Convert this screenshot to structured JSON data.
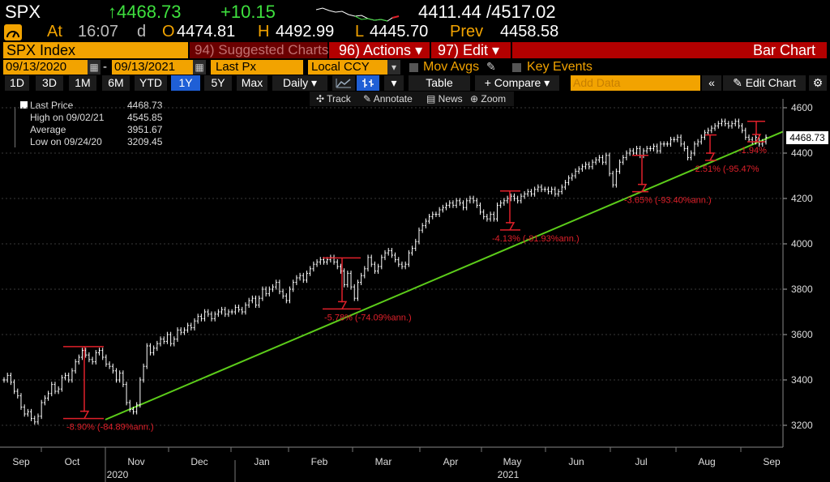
{
  "quote": {
    "symbol": "SPX",
    "last": "↑4468.73",
    "change": "+10.15",
    "range": "4411.44 /4517.02",
    "at_label": "At",
    "time": "16:07",
    "d": "d",
    "open_label": "O",
    "open": "4474.81",
    "high_label": "H",
    "high": "4492.99",
    "low_label": "L",
    "low": "4445.70",
    "prev_label": "Prev",
    "prev": "4458.58"
  },
  "toolbar1": {
    "security": "SPX Index",
    "suggested": "94) Suggested Charts",
    "actions": "96) Actions",
    "edit": "97) Edit",
    "bar_chart": "Bar Chart"
  },
  "toolbar2": {
    "start_date": "09/13/2020",
    "end_date": "09/13/2021",
    "field": "Last Px",
    "currency": "Local CCY",
    "mov_avgs": "Mov Avgs",
    "key_events": "Key Events"
  },
  "toolbar3": {
    "periods": [
      "1D",
      "3D",
      "1M",
      "6M",
      "YTD",
      "1Y",
      "5Y",
      "Max"
    ],
    "selected_period": "1Y",
    "frequency": "Daily",
    "table": "Table",
    "compare": "+ Compare",
    "add_data_placeholder": "Add Data",
    "edit_chart": "Edit Chart"
  },
  "chart_tools": {
    "track": "Track",
    "annotate": "Annotate",
    "news": "News",
    "zoom": "Zoom"
  },
  "legend": {
    "rows": [
      {
        "label": "Last Price",
        "value": "4468.73"
      },
      {
        "label": "High on 09/02/21",
        "value": "4545.85"
      },
      {
        "label": "Average",
        "value": "3951.67"
      },
      {
        "label": "Low on 09/24/20",
        "value": "3209.45"
      }
    ]
  },
  "last_price_tag": "4468.73",
  "colors": {
    "accent_orange": "#f2a300",
    "trend_green": "#5ccc1a",
    "annotation_red": "#e0202a",
    "positive_green": "#3ee03e"
  },
  "chart_data": {
    "type": "line",
    "y_ticks": [
      3200,
      3400,
      3600,
      3800,
      4000,
      4200,
      4400,
      4600
    ],
    "ylim": [
      3150,
      4650
    ],
    "x_ticks": [
      "Sep",
      "Oct",
      "Nov",
      "Dec",
      "Jan",
      "Feb",
      "Mar",
      "Apr",
      "May",
      "Jun",
      "Jul",
      "Aug",
      "Sep"
    ],
    "year_labels": [
      "2020",
      "2021"
    ],
    "series": [
      {
        "values": [
          3400,
          3420,
          3390,
          3350,
          3330,
          3280,
          3250,
          3260,
          3230,
          3215,
          3240,
          3300,
          3320,
          3340,
          3380,
          3350,
          3360,
          3410,
          3420,
          3400,
          3440,
          3480,
          3500,
          3530,
          3510,
          3490,
          3480,
          3520,
          3530,
          3500,
          3470,
          3460,
          3440,
          3400,
          3430,
          3380,
          3300,
          3270,
          3260,
          3290,
          3400,
          3460,
          3550,
          3520,
          3540,
          3560,
          3580,
          3570,
          3600,
          3560,
          3580,
          3620,
          3610,
          3620,
          3640,
          3630,
          3660,
          3680,
          3670,
          3700,
          3690,
          3670,
          3690,
          3700,
          3710,
          3690,
          3700,
          3700,
          3720,
          3710,
          3700,
          3730,
          3750,
          3760,
          3730,
          3760,
          3800,
          3780,
          3800,
          3810,
          3830,
          3790,
          3770,
          3750,
          3800,
          3830,
          3850,
          3860,
          3840,
          3870,
          3890,
          3910,
          3920,
          3930,
          3920,
          3930,
          3940,
          3920,
          3900,
          3880,
          3820,
          3870,
          3810,
          3760,
          3830,
          3860,
          3890,
          3940,
          3910,
          3880,
          3900,
          3940,
          3960,
          3970,
          3950,
          3930,
          3910,
          3900,
          3910,
          3960,
          3980,
          4010,
          4060,
          4080,
          4100,
          4120,
          4130,
          4130,
          4150,
          4160,
          4170,
          4180,
          4170,
          4190,
          4180,
          4160,
          4190,
          4200,
          4190,
          4170,
          4140,
          4120,
          4110,
          4130,
          4110,
          4170,
          4180,
          4190,
          4200,
          4210,
          4200,
          4190,
          4210,
          4220,
          4230,
          4220,
          4240,
          4250,
          4240,
          4240,
          4230,
          4240,
          4220,
          4230,
          4250,
          4270,
          4290,
          4300,
          4320,
          4330,
          4340,
          4350,
          4340,
          4360,
          4370,
          4380,
          4360,
          4390,
          4310,
          4260,
          4320,
          4360,
          4380,
          4400,
          4410,
          4400,
          4420,
          4390,
          4410,
          4420,
          4420,
          4430,
          4410,
          4440,
          4440,
          4440,
          4460,
          4460,
          4470,
          4440,
          4420,
          4380,
          4400,
          4440,
          4450,
          4470,
          4490,
          4500,
          4510,
          4520,
          4530,
          4540,
          4530,
          4520,
          4530,
          4540,
          4520,
          4500,
          4470,
          4460,
          4450,
          4470,
          4440,
          4450,
          4470
        ],
        "annotations": [
          {
            "from": 3547,
            "to": 3230,
            "label": "-8.90% (-84.89%ann.)"
          },
          {
            "from": 3938,
            "to": 3713,
            "label": "-5.78% (-74.09%ann.)"
          },
          {
            "from": 4233,
            "to": 4061,
            "label": "-4.13% (-81.93%ann.)"
          },
          {
            "from": 4390,
            "to": 4230,
            "label": "-3.65% (-93.40%ann.)"
          },
          {
            "from": 4480,
            "to": 4368,
            "label": "-2.51% (-95.47%"
          },
          {
            "from": 4540,
            "to": 4450,
            "label": "-1.94%"
          }
        ]
      }
    ]
  }
}
